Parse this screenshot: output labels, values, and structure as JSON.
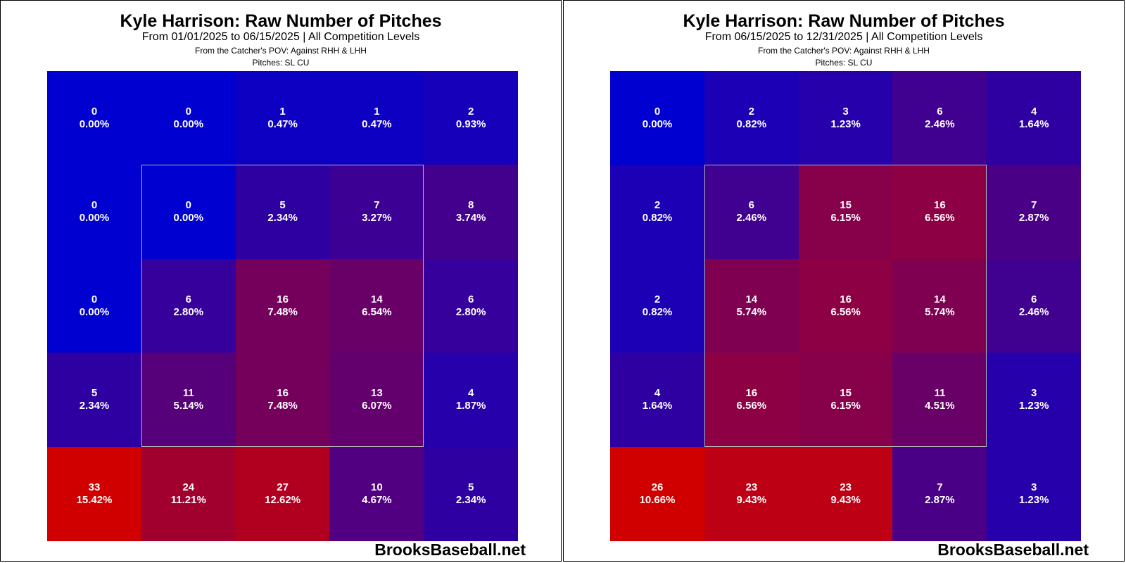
{
  "color_scale": {
    "low": "#0000d0",
    "high": "#d00000"
  },
  "panels": [
    {
      "title": "Kyle Harrison: Raw Number of Pitches",
      "subtitle": "From 01/01/2025 to 06/15/2025 | All Competition Levels",
      "note1": "From the Catcher's POV:   Against RHH & LHH",
      "note2": "Pitches:  SL  CU",
      "watermark": "BrooksBaseball.net"
    },
    {
      "title": "Kyle Harrison: Raw Number of Pitches",
      "subtitle": "From 06/15/2025 to 12/31/2025 | All Competition Levels",
      "note1": "From the Catcher's POV:   Against RHH & LHH",
      "note2": "Pitches:  SL  CU",
      "watermark": "BrooksBaseball.net"
    }
  ],
  "chart_data": [
    {
      "type": "heatmap",
      "title": "Kyle Harrison: Raw Number of Pitches",
      "rows": 5,
      "cols": 5,
      "counts": [
        [
          0,
          0,
          1,
          1,
          2
        ],
        [
          0,
          0,
          5,
          7,
          8
        ],
        [
          0,
          6,
          16,
          14,
          6
        ],
        [
          5,
          11,
          16,
          13,
          4
        ],
        [
          33,
          24,
          27,
          10,
          5
        ]
      ],
      "percents": [
        [
          "0.00%",
          "0.00%",
          "0.47%",
          "0.47%",
          "0.93%"
        ],
        [
          "0.00%",
          "0.00%",
          "2.34%",
          "3.27%",
          "3.74%"
        ],
        [
          "0.00%",
          "2.80%",
          "7.48%",
          "6.54%",
          "2.80%"
        ],
        [
          "2.34%",
          "5.14%",
          "7.48%",
          "6.07%",
          "1.87%"
        ],
        [
          "15.42%",
          "11.21%",
          "12.62%",
          "4.67%",
          "2.34%"
        ]
      ],
      "strike_zone": {
        "rows": [
          1,
          3
        ],
        "cols": [
          1,
          3
        ]
      }
    },
    {
      "type": "heatmap",
      "title": "Kyle Harrison: Raw Number of Pitches",
      "rows": 5,
      "cols": 5,
      "counts": [
        [
          0,
          2,
          3,
          6,
          4
        ],
        [
          2,
          6,
          15,
          16,
          7
        ],
        [
          2,
          14,
          16,
          14,
          6
        ],
        [
          4,
          16,
          15,
          11,
          3
        ],
        [
          26,
          23,
          23,
          7,
          3
        ]
      ],
      "percents": [
        [
          "0.00%",
          "0.82%",
          "1.23%",
          "2.46%",
          "1.64%"
        ],
        [
          "0.82%",
          "2.46%",
          "6.15%",
          "6.56%",
          "2.87%"
        ],
        [
          "0.82%",
          "5.74%",
          "6.56%",
          "5.74%",
          "2.46%"
        ],
        [
          "1.64%",
          "6.56%",
          "6.15%",
          "4.51%",
          "1.23%"
        ],
        [
          "10.66%",
          "9.43%",
          "9.43%",
          "2.87%",
          "1.23%"
        ]
      ],
      "strike_zone": {
        "rows": [
          1,
          3
        ],
        "cols": [
          1,
          3
        ]
      }
    }
  ]
}
